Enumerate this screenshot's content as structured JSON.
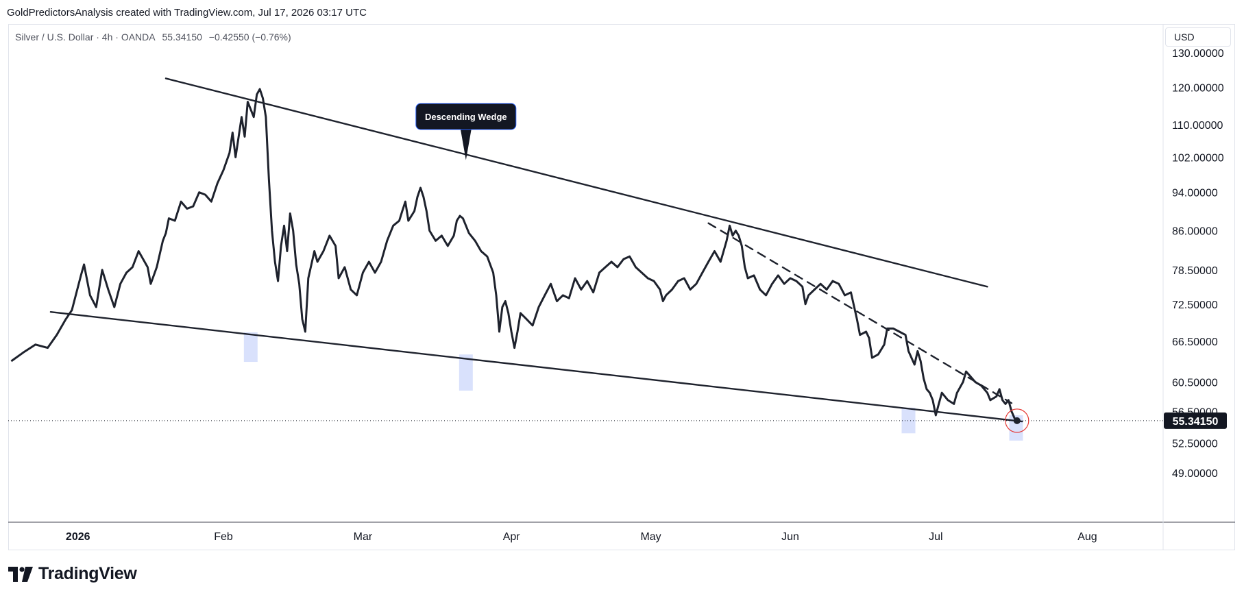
{
  "header": {
    "credit": "GoldPredictorsAnalysis created with TradingView.com, Jul 17, 2026 03:17 UTC"
  },
  "legend": {
    "symbol": "Silver / U.S. Dollar · 4h · OANDA",
    "price": "55.34150",
    "change": "−0.42550 (−0.76%)"
  },
  "currency_button": "USD",
  "footer": {
    "brand": "TradingView"
  },
  "colors": {
    "line": "#1e222d",
    "highlight": "#d2dcfb",
    "marker": "#e53935",
    "grid_border": "#e0e3eb",
    "price_label_bg": "#131722"
  },
  "chart_data": {
    "type": "line",
    "series": [
      {
        "values": [
          [
            0,
            63.5
          ],
          [
            4,
            64.8
          ],
          [
            8,
            66.0
          ],
          [
            12,
            65.5
          ],
          [
            15,
            67.5
          ],
          [
            18,
            70.0
          ],
          [
            20,
            71.5
          ],
          [
            23,
            77.5
          ],
          [
            24,
            79.5
          ],
          [
            26,
            74.0
          ],
          [
            28,
            72.0
          ],
          [
            30,
            78.5
          ],
          [
            32,
            75.0
          ],
          [
            34,
            72.0
          ],
          [
            36,
            76.0
          ],
          [
            38,
            78.0
          ],
          [
            40,
            79.0
          ],
          [
            42,
            82.0
          ],
          [
            43,
            81.0
          ],
          [
            45,
            79.0
          ],
          [
            46,
            76.0
          ],
          [
            48,
            79.0
          ],
          [
            50,
            84.0
          ],
          [
            51,
            85.5
          ],
          [
            52,
            88.5
          ],
          [
            54,
            88.0
          ],
          [
            56,
            92.0
          ],
          [
            58,
            90.5
          ],
          [
            60,
            91.0
          ],
          [
            62,
            94.0
          ],
          [
            64,
            93.5
          ],
          [
            66,
            92.0
          ],
          [
            68,
            96.0
          ],
          [
            70,
            99.0
          ],
          [
            72,
            103.0
          ],
          [
            73,
            108.0
          ],
          [
            74,
            102.0
          ],
          [
            76,
            112.0
          ],
          [
            77,
            107.0
          ],
          [
            78,
            116.0
          ],
          [
            80,
            112.0
          ],
          [
            81,
            118.0
          ],
          [
            82,
            119.5
          ],
          [
            83,
            117.0
          ],
          [
            84,
            112.0
          ],
          [
            85,
            97.0
          ],
          [
            86,
            86.0
          ],
          [
            87,
            80.0
          ],
          [
            88,
            76.5
          ],
          [
            89,
            83.0
          ],
          [
            90,
            87.0
          ],
          [
            91,
            82.0
          ],
          [
            92,
            89.5
          ],
          [
            93,
            86.0
          ],
          [
            94,
            79.5
          ],
          [
            95,
            76.0
          ],
          [
            96,
            70.0
          ],
          [
            97,
            68.0
          ],
          [
            98,
            77.0
          ],
          [
            100,
            82.0
          ],
          [
            101,
            80.0
          ],
          [
            103,
            82.0
          ],
          [
            105,
            85.0
          ],
          [
            107,
            83.0
          ],
          [
            108,
            77.0
          ],
          [
            110,
            79.0
          ],
          [
            112,
            75.0
          ],
          [
            114,
            74.0
          ],
          [
            116,
            78.0
          ],
          [
            118,
            80.0
          ],
          [
            120,
            78.0
          ],
          [
            122,
            80.0
          ],
          [
            124,
            84.0
          ],
          [
            126,
            87.0
          ],
          [
            128,
            88.0
          ],
          [
            129,
            90.0
          ],
          [
            130,
            92.0
          ],
          [
            131,
            88.0
          ],
          [
            133,
            90.0
          ],
          [
            134,
            93.0
          ],
          [
            135,
            95.0
          ],
          [
            136,
            93.0
          ],
          [
            137,
            90.0
          ],
          [
            138,
            86.0
          ],
          [
            140,
            84.0
          ],
          [
            142,
            85.0
          ],
          [
            144,
            83.0
          ],
          [
            146,
            85.0
          ],
          [
            147,
            88.0
          ],
          [
            148,
            89.0
          ],
          [
            149,
            88.5
          ],
          [
            150,
            87.0
          ],
          [
            151,
            85.5
          ],
          [
            153,
            84.0
          ],
          [
            155,
            82.0
          ],
          [
            157,
            81.0
          ],
          [
            159,
            78.0
          ],
          [
            160,
            74.0
          ],
          [
            161,
            68.0
          ],
          [
            162,
            72.0
          ],
          [
            163,
            73.0
          ],
          [
            164,
            71.0
          ],
          [
            165,
            68.0
          ],
          [
            166,
            65.5
          ],
          [
            167,
            68.0
          ],
          [
            168,
            71.0
          ],
          [
            170,
            70.0
          ],
          [
            172,
            69.0
          ],
          [
            174,
            72.0
          ],
          [
            176,
            74.0
          ],
          [
            178,
            76.0
          ],
          [
            180,
            73.0
          ],
          [
            182,
            74.0
          ],
          [
            184,
            73.5
          ],
          [
            186,
            77.0
          ],
          [
            188,
            75.0
          ],
          [
            190,
            76.5
          ],
          [
            192,
            74.5
          ],
          [
            194,
            78.0
          ],
          [
            196,
            79.0
          ],
          [
            198,
            80.0
          ],
          [
            200,
            79.0
          ],
          [
            202,
            80.5
          ],
          [
            204,
            81.0
          ],
          [
            206,
            79.0
          ],
          [
            208,
            78.0
          ],
          [
            210,
            77.0
          ],
          [
            212,
            76.5
          ],
          [
            214,
            75.0
          ],
          [
            215,
            73.0
          ],
          [
            216,
            74.0
          ],
          [
            218,
            75.0
          ],
          [
            220,
            76.5
          ],
          [
            222,
            77.0
          ],
          [
            224,
            75.0
          ],
          [
            226,
            76.0
          ],
          [
            228,
            78.0
          ],
          [
            230,
            80.0
          ],
          [
            232,
            82.0
          ],
          [
            234,
            80.0
          ],
          [
            236,
            84.0
          ],
          [
            237,
            87.0
          ],
          [
            238,
            85.0
          ],
          [
            239,
            86.0
          ],
          [
            240,
            85.0
          ],
          [
            241,
            83.0
          ],
          [
            242,
            79.0
          ],
          [
            243,
            77.0
          ],
          [
            245,
            77.5
          ],
          [
            247,
            75.0
          ],
          [
            249,
            74.0
          ],
          [
            251,
            76.0
          ],
          [
            253,
            77.5
          ],
          [
            255,
            76.0
          ],
          [
            257,
            77.0
          ],
          [
            259,
            76.5
          ],
          [
            261,
            75.5
          ],
          [
            262,
            72.5
          ],
          [
            263,
            74.0
          ],
          [
            265,
            75.0
          ],
          [
            267,
            76.0
          ],
          [
            269,
            75.0
          ],
          [
            271,
            76.5
          ],
          [
            273,
            76.0
          ],
          [
            275,
            74.0
          ],
          [
            277,
            74.5
          ],
          [
            279,
            70.0
          ],
          [
            280,
            67.5
          ],
          [
            282,
            68.0
          ],
          [
            283,
            67.0
          ],
          [
            284,
            64.0
          ],
          [
            286,
            64.5
          ],
          [
            288,
            66.0
          ],
          [
            289,
            68.5
          ],
          [
            291,
            68.5
          ],
          [
            293,
            68.0
          ],
          [
            295,
            67.5
          ],
          [
            296,
            65.0
          ],
          [
            298,
            63.0
          ],
          [
            299,
            65.0
          ],
          [
            300,
            63.5
          ],
          [
            301,
            61.0
          ],
          [
            302,
            59.5
          ],
          [
            303,
            59.0
          ],
          [
            304,
            58.0
          ],
          [
            305,
            56.0
          ],
          [
            306,
            57.5
          ],
          [
            307,
            59.0
          ],
          [
            309,
            58.0
          ],
          [
            311,
            57.5
          ],
          [
            312,
            59.0
          ],
          [
            314,
            60.5
          ],
          [
            315,
            62.0
          ],
          [
            316,
            61.5
          ],
          [
            318,
            60.5
          ],
          [
            320,
            60.0
          ],
          [
            322,
            59.0
          ],
          [
            323,
            58.0
          ],
          [
            325,
            58.5
          ],
          [
            326,
            59.5
          ],
          [
            327,
            58.0
          ],
          [
            328,
            57.5
          ],
          [
            329,
            58.0
          ],
          [
            330,
            56.5
          ],
          [
            331,
            55.6
          ],
          [
            331.8,
            55.3
          ]
        ]
      }
    ],
    "xlim": [
      -1,
      380
    ],
    "ylim": [
      43.68,
      138.79
    ],
    "y_scale": "log",
    "x_ticks": [
      {
        "label": "2026",
        "x": 22
      },
      {
        "label": "Feb",
        "x": 70
      },
      {
        "label": "Mar",
        "x": 116
      },
      {
        "label": "Apr",
        "x": 165
      },
      {
        "label": "May",
        "x": 211
      },
      {
        "label": "Jun",
        "x": 257
      },
      {
        "label": "Jul",
        "x": 305
      },
      {
        "label": "Aug",
        "x": 355
      }
    ],
    "y_ticks": [
      "130.00000",
      "120.00000",
      "110.00000",
      "102.00000",
      "94.00000",
      "86.00000",
      "78.50000",
      "72.50000",
      "66.50000",
      "60.50000",
      "56.50000",
      "52.50000",
      "49.00000"
    ],
    "last_price_label": "55.34150",
    "annotations": [
      {
        "text": "Descending Wedge",
        "type": "callout",
        "x": 150,
        "y": 101
      }
    ],
    "trendlines": [
      {
        "style": "solid",
        "from": [
          51,
          122.5
        ],
        "to": [
          322,
          75.5
        ]
      },
      {
        "style": "solid",
        "from": [
          13,
          71.2
        ],
        "to": [
          333.5,
          55.2
        ]
      },
      {
        "style": "dashed",
        "from": [
          230,
          87.5
        ],
        "to": [
          330,
          57.6
        ]
      }
    ],
    "highlights": [
      {
        "x": 79,
        "y_low": 63.4,
        "y_high": 67.9
      },
      {
        "x": 150,
        "y_low": 59.3,
        "y_high": 64.5
      },
      {
        "x": 296,
        "y_low": 53.7,
        "y_high": 57.0
      },
      {
        "x": 331.5,
        "y_low": 52.8,
        "y_high": 56.0
      }
    ],
    "grid": false,
    "legend": "none"
  }
}
